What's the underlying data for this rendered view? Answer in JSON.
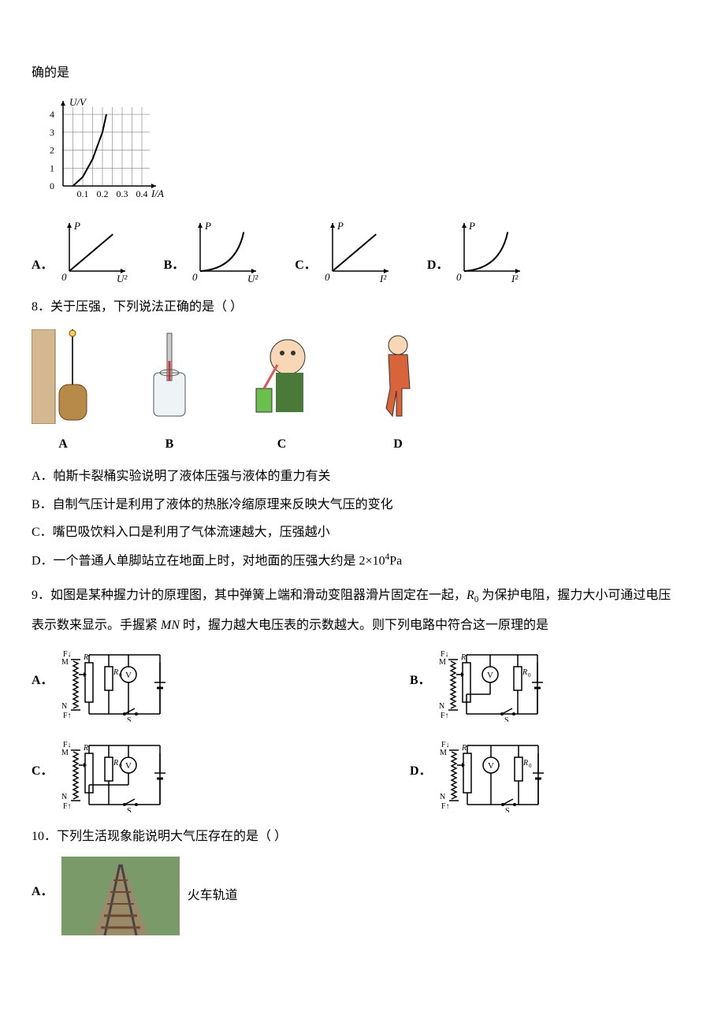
{
  "intro_fragment": "确的是",
  "uv_chart": {
    "type": "line",
    "y_label": "U/V",
    "x_label": "I/A",
    "y_ticks": [
      0,
      1,
      2,
      3,
      4
    ],
    "x_ticks": [
      0.1,
      0.2,
      0.3,
      0.4
    ],
    "x_tick_labels": [
      "0.1",
      "0.2",
      "0.3",
      "0.4"
    ],
    "curve_points": [
      [
        0.05,
        0
      ],
      [
        0.1,
        0.5
      ],
      [
        0.15,
        1.5
      ],
      [
        0.2,
        3
      ],
      [
        0.22,
        4
      ]
    ],
    "width": 160,
    "height": 130,
    "axis_color": "#000000",
    "grid_color": "#666666",
    "curve_color": "#000000",
    "bg": "#ffffff"
  },
  "q7_options": {
    "A": {
      "y_label": "P",
      "x_label": "U²",
      "curve": "linear",
      "color": "#000"
    },
    "B": {
      "y_label": "P",
      "x_label": "U²",
      "curve": "concave_up",
      "color": "#000"
    },
    "C": {
      "y_label": "P",
      "x_label": "I²",
      "curve": "linear",
      "color": "#000"
    },
    "D": {
      "y_label": "P",
      "x_label": "I²",
      "curve": "concave_up",
      "color": "#000"
    }
  },
  "q8": {
    "stem": "8．关于压强，下列说法正确的是（       ）",
    "images": {
      "A": "barrel",
      "B": "barometer",
      "C": "straw-drink",
      "D": "standing"
    },
    "opts": {
      "A": "A．帕斯卡裂桶实验说明了液体压强与液体的重力有关",
      "B": "B．自制气压计是利用了液体的热胀冷缩原理来反映大气压的变化",
      "C": "C．嘴巴吸饮料入口是利用了气体流速越大，压强越小",
      "D_pre": "D．一个普通人单脚站立在地面上时，对地面的压强大约是 2×10",
      "D_exp": "4",
      "D_post": "Pa"
    }
  },
  "q9": {
    "stem_1": "9．如图是某种握力计的原理图，其中弹簧上端和滑动变阻器滑片固定在一起，",
    "r0": "R",
    "r0_sub": "0",
    "stem_2": " 为保护电阻，握力大小可通过电压",
    "stem_3": "表示数来显示。手握紧 ",
    "mn": "MN",
    "stem_4": " 时，握力越大电压表的示数越大。则下列电路中符合这一原理的是",
    "labels": {
      "A": "A．",
      "B": "B．",
      "C": "C．",
      "D": "D．"
    }
  },
  "q10": {
    "stem": "10．下列生活现象能说明大气压存在的是（       ）",
    "A_label": "A．",
    "A_text": "火车轨道"
  }
}
